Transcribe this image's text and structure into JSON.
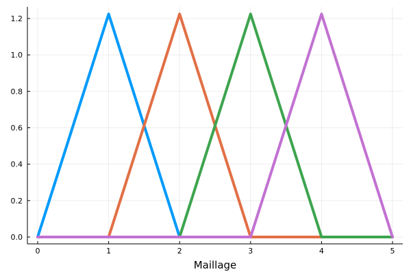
{
  "chart_data": {
    "type": "line",
    "xlabel": "Maillage",
    "ylabel": "",
    "xlim": [
      0,
      5
    ],
    "ylim": [
      0,
      1.2247
    ],
    "xticks": [
      0,
      1,
      2,
      3,
      4,
      5
    ],
    "xtick_labels": [
      "0",
      "1",
      "2",
      "3",
      "4",
      "5"
    ],
    "yticks": [
      0.0,
      0.2,
      0.4,
      0.6,
      0.8,
      1.0,
      1.2
    ],
    "ytick_labels": [
      "0.0",
      "0.2",
      "0.4",
      "0.6",
      "0.8",
      "1.0",
      "1.2"
    ],
    "grid": true,
    "legend": "none",
    "x": [
      0,
      1,
      2,
      3,
      4,
      5
    ],
    "series": [
      {
        "color": "#009AFA",
        "values": [
          0,
          1.2247,
          0,
          0,
          0,
          0
        ]
      },
      {
        "color": "#E26F46",
        "values": [
          0,
          0,
          1.2247,
          0,
          0,
          0
        ]
      },
      {
        "color": "#3DA44E",
        "values": [
          0,
          0,
          0,
          1.2247,
          0,
          0
        ]
      },
      {
        "color": "#C271D2",
        "values": [
          0,
          0,
          0,
          0,
          1.2247,
          0
        ]
      }
    ]
  }
}
